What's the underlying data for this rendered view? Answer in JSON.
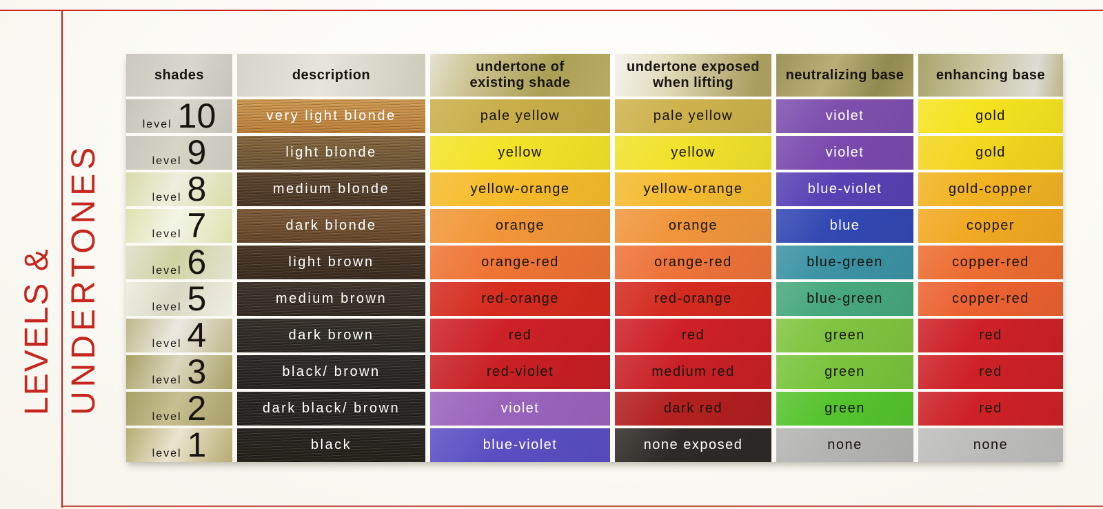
{
  "page": {
    "accent_color": "#c5261f"
  },
  "chart_data": {
    "type": "table",
    "title": "LEVELS & UNDERTONES",
    "title_lines": [
      "LEVELS &",
      "UNDERTONES"
    ],
    "columns": [
      {
        "key": "shades",
        "label": "shades"
      },
      {
        "key": "description",
        "label": "description"
      },
      {
        "key": "undertone_existing",
        "label": "undertone of existing shade"
      },
      {
        "key": "undertone_lifting",
        "label": "undertone exposed when lifting"
      },
      {
        "key": "neutralizing",
        "label": "neutralizing base"
      },
      {
        "key": "enhancing",
        "label": "enhancing base"
      }
    ],
    "rows": [
      {
        "level_label": "level",
        "level": "10",
        "shade_bg": [
          "#c5c3ba",
          "#d8d6cd"
        ],
        "description": {
          "text": "very light blonde",
          "bg": "#cf9a52",
          "bg2": "#bd7e37",
          "fg": "#ffffff"
        },
        "undertone_existing": {
          "text": "pale yellow",
          "bg": "#c9ae49",
          "fg": "#181410"
        },
        "undertone_lifting": {
          "text": "pale yellow",
          "bg": "#cdb24c",
          "fg": "#181410"
        },
        "neutralizing": {
          "text": "violet",
          "bg": "#7e50ae",
          "fg": "#ffffff"
        },
        "enhancing": {
          "text": "gold",
          "bg": "#f5e320",
          "fg": "#181410"
        }
      },
      {
        "level_label": "level",
        "level": "9",
        "shade_bg": [
          "#c8c6bd",
          "#d6d4c4"
        ],
        "description": {
          "text": "light blonde",
          "bg": "#86683e",
          "bg2": "#6b5233",
          "fg": "#ffffff"
        },
        "undertone_existing": {
          "text": "yellow",
          "bg": "#f3e328",
          "fg": "#181410"
        },
        "undertone_lifting": {
          "text": "yellow",
          "bg": "#f1e22b",
          "fg": "#181410"
        },
        "neutralizing": {
          "text": "violet",
          "bg": "#7a4aae",
          "fg": "#ffffff"
        },
        "enhancing": {
          "text": "gold",
          "bg": "#f3d61f",
          "fg": "#181410"
        }
      },
      {
        "level_label": "level",
        "level": "8",
        "shade_bg": [
          "#dadcaa",
          "#edeedd"
        ],
        "description": {
          "text": "medium blonde",
          "bg": "#5f462e",
          "bg2": "#493522",
          "fg": "#ffffff"
        },
        "undertone_existing": {
          "text": "yellow-orange",
          "bg": "#f5bc2b",
          "fg": "#181410"
        },
        "undertone_lifting": {
          "text": "yellow-orange",
          "bg": "#f4bb30",
          "fg": "#181410"
        },
        "neutralizing": {
          "text": "blue-violet",
          "bg": "#5742b4",
          "fg": "#ffffff"
        },
        "enhancing": {
          "text": "gold-copper",
          "bg": "#f1b322",
          "fg": "#181410"
        }
      },
      {
        "level_label": "level",
        "level": "7",
        "shade_bg": [
          "#dde2ae",
          "#f3f5e6"
        ],
        "description": {
          "text": "dark blonde",
          "bg": "#7d5a3a",
          "bg2": "#664628",
          "fg": "#ffffff"
        },
        "undertone_existing": {
          "text": "orange",
          "bg": "#f19738",
          "fg": "#181410"
        },
        "undertone_lifting": {
          "text": "orange",
          "bg": "#f0963c",
          "fg": "#181410"
        },
        "neutralizing": {
          "text": "blue",
          "bg": "#3348b2",
          "fg": "#ffffff"
        },
        "enhancing": {
          "text": "copper",
          "bg": "#f1a922",
          "fg": "#181410"
        }
      },
      {
        "level_label": "level",
        "level": "6",
        "shade_bg": [
          "#e4e3d1",
          "#cfd2a2"
        ],
        "description": {
          "text": "light brown",
          "bg": "#4a3827",
          "bg2": "#392b1d",
          "fg": "#ffffff"
        },
        "undertone_existing": {
          "text": "orange-red",
          "bg": "#ef7434",
          "fg": "#181410"
        },
        "undertone_lifting": {
          "text": "orange-red",
          "bg": "#ee7339",
          "fg": "#181410"
        },
        "neutralizing": {
          "text": "blue-green",
          "bg": "#3c93a4",
          "fg": "#181410"
        },
        "enhancing": {
          "text": "copper-red",
          "bg": "#ed6d31",
          "fg": "#181410"
        }
      },
      {
        "level_label": "level",
        "level": "5",
        "shade_bg": [
          "#efeee3",
          "#dbd9c4"
        ],
        "description": {
          "text": "medium brown",
          "bg": "#3e342c",
          "bg2": "#332a22",
          "fg": "#ffffff"
        },
        "undertone_existing": {
          "text": "red-orange",
          "bg": "#d52b1e",
          "fg": "#181410"
        },
        "undertone_lifting": {
          "text": "red-orange",
          "bg": "#d42a1f",
          "fg": "#181410"
        },
        "neutralizing": {
          "text": "blue-green",
          "bg": "#47a87d",
          "fg": "#181410"
        },
        "enhancing": {
          "text": "copper-red",
          "bg": "#eb6230",
          "fg": "#181410"
        }
      },
      {
        "level_label": "level",
        "level": "4",
        "shade_bg": [
          "#beb789",
          "#ece9e1"
        ],
        "description": {
          "text": "dark brown",
          "bg": "#35302a",
          "bg2": "#2c2722",
          "fg": "#ffffff"
        },
        "undertone_existing": {
          "text": "red",
          "bg": "#cd2127",
          "fg": "#181410"
        },
        "undertone_lifting": {
          "text": "red",
          "bg": "#ce2127",
          "fg": "#181410"
        },
        "neutralizing": {
          "text": "green",
          "bg": "#80c440",
          "fg": "#181410"
        },
        "enhancing": {
          "text": "red",
          "bg": "#cd2127",
          "fg": "#181410"
        }
      },
      {
        "level_label": "level",
        "level": "3",
        "shade_bg": [
          "#a7a065",
          "#dad7be"
        ],
        "description": {
          "text": "black/ brown",
          "bg": "#2e2a27",
          "bg2": "#272320",
          "fg": "#ffffff"
        },
        "undertone_existing": {
          "text": "red-violet",
          "bg": "#c81f23",
          "fg": "#181410"
        },
        "undertone_lifting": {
          "text": "medium red",
          "bg": "#c92025",
          "fg": "#181410"
        },
        "neutralizing": {
          "text": "green",
          "bg": "#7ac43d",
          "fg": "#181410"
        },
        "enhancing": {
          "text": "red",
          "bg": "#cd2127",
          "fg": "#181410"
        }
      },
      {
        "level_label": "level",
        "level": "2",
        "shade_bg": [
          "#a89f66",
          "#c6bf90"
        ],
        "description": {
          "text": "dark black/ brown",
          "bg": "#2b2724",
          "bg2": "#262220",
          "fg": "#ffffff"
        },
        "undertone_existing": {
          "text": "violet",
          "bg": "#9a64bd",
          "fg": "#ffffff"
        },
        "undertone_lifting": {
          "text": "dark red",
          "bg": "#b2201f",
          "fg": "#181410"
        },
        "neutralizing": {
          "text": "green",
          "bg": "#55c42e",
          "fg": "#181410"
        },
        "enhancing": {
          "text": "red",
          "bg": "#cd2127",
          "fg": "#181410"
        }
      },
      {
        "level_label": "level",
        "level": "1",
        "shade_bg": [
          "#b6ac72",
          "#eae4ce"
        ],
        "description": {
          "text": "black",
          "bg": "#282420",
          "bg2": "#232019",
          "fg": "#ffffff"
        },
        "undertone_existing": {
          "text": "blue-violet",
          "bg": "#5a4ec2",
          "fg": "#ffffff"
        },
        "undertone_lifting": {
          "text": "none exposed",
          "bg": "#2e2a28",
          "fg": "#ffffff"
        },
        "neutralizing": {
          "text": "none",
          "bg": "#b4b4b2",
          "fg": "#181410"
        },
        "enhancing": {
          "text": "none",
          "bg": "#bdbdbb",
          "fg": "#181410"
        }
      }
    ]
  }
}
